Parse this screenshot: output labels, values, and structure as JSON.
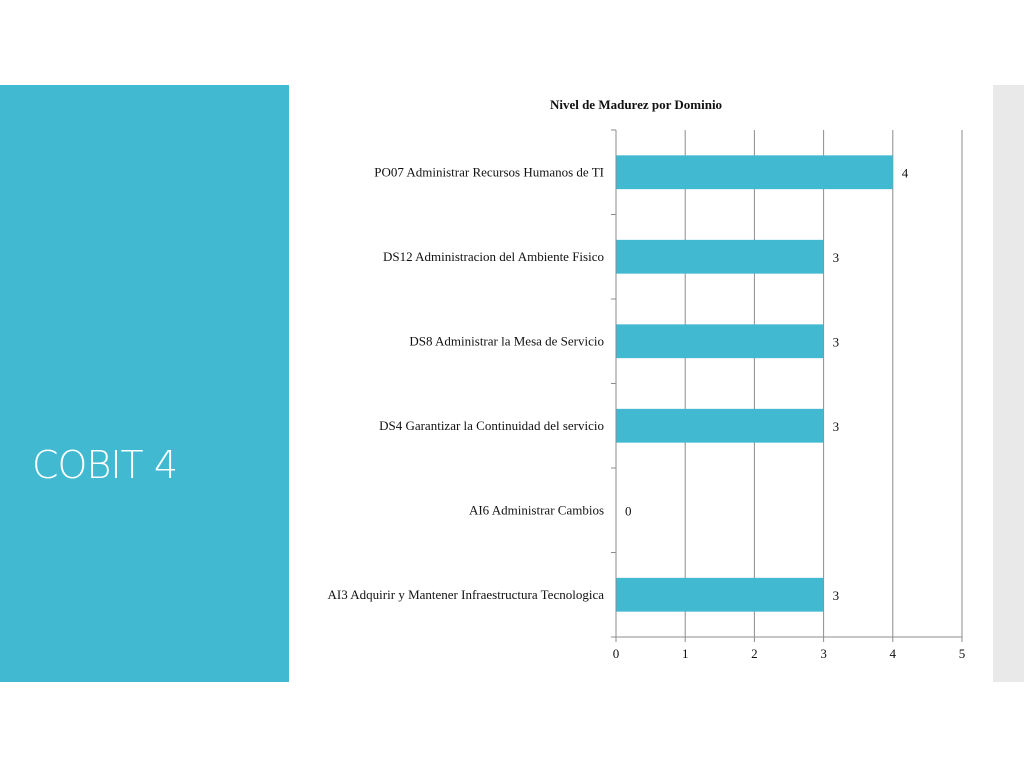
{
  "slide": {
    "title": "COBIT 4",
    "accent_color": "#41b9d1",
    "side_strip_color": "#e9e9e9"
  },
  "chart_data": {
    "type": "bar",
    "orientation": "horizontal",
    "title": "Nivel de Madurez por Dominio",
    "xlabel": "",
    "ylabel": "",
    "categories": [
      "PO07 Administrar Recursos Humanos de TI",
      "DS12 Administracion del Ambiente Fisico",
      "DS8  Administrar la Mesa de Servicio",
      "DS4   Garantizar la Continuidad del servicio",
      "AI6 Administrar Cambios",
      "AI3 Adquirir y Mantener Infraestructura Tecnologica"
    ],
    "values": [
      4,
      3,
      3,
      3,
      0,
      3
    ],
    "xlim": [
      0,
      5
    ],
    "xticks": [
      0,
      1,
      2,
      3,
      4,
      5
    ],
    "grid": "vertical",
    "legend": "none",
    "bar_color": "#41b9d1"
  }
}
